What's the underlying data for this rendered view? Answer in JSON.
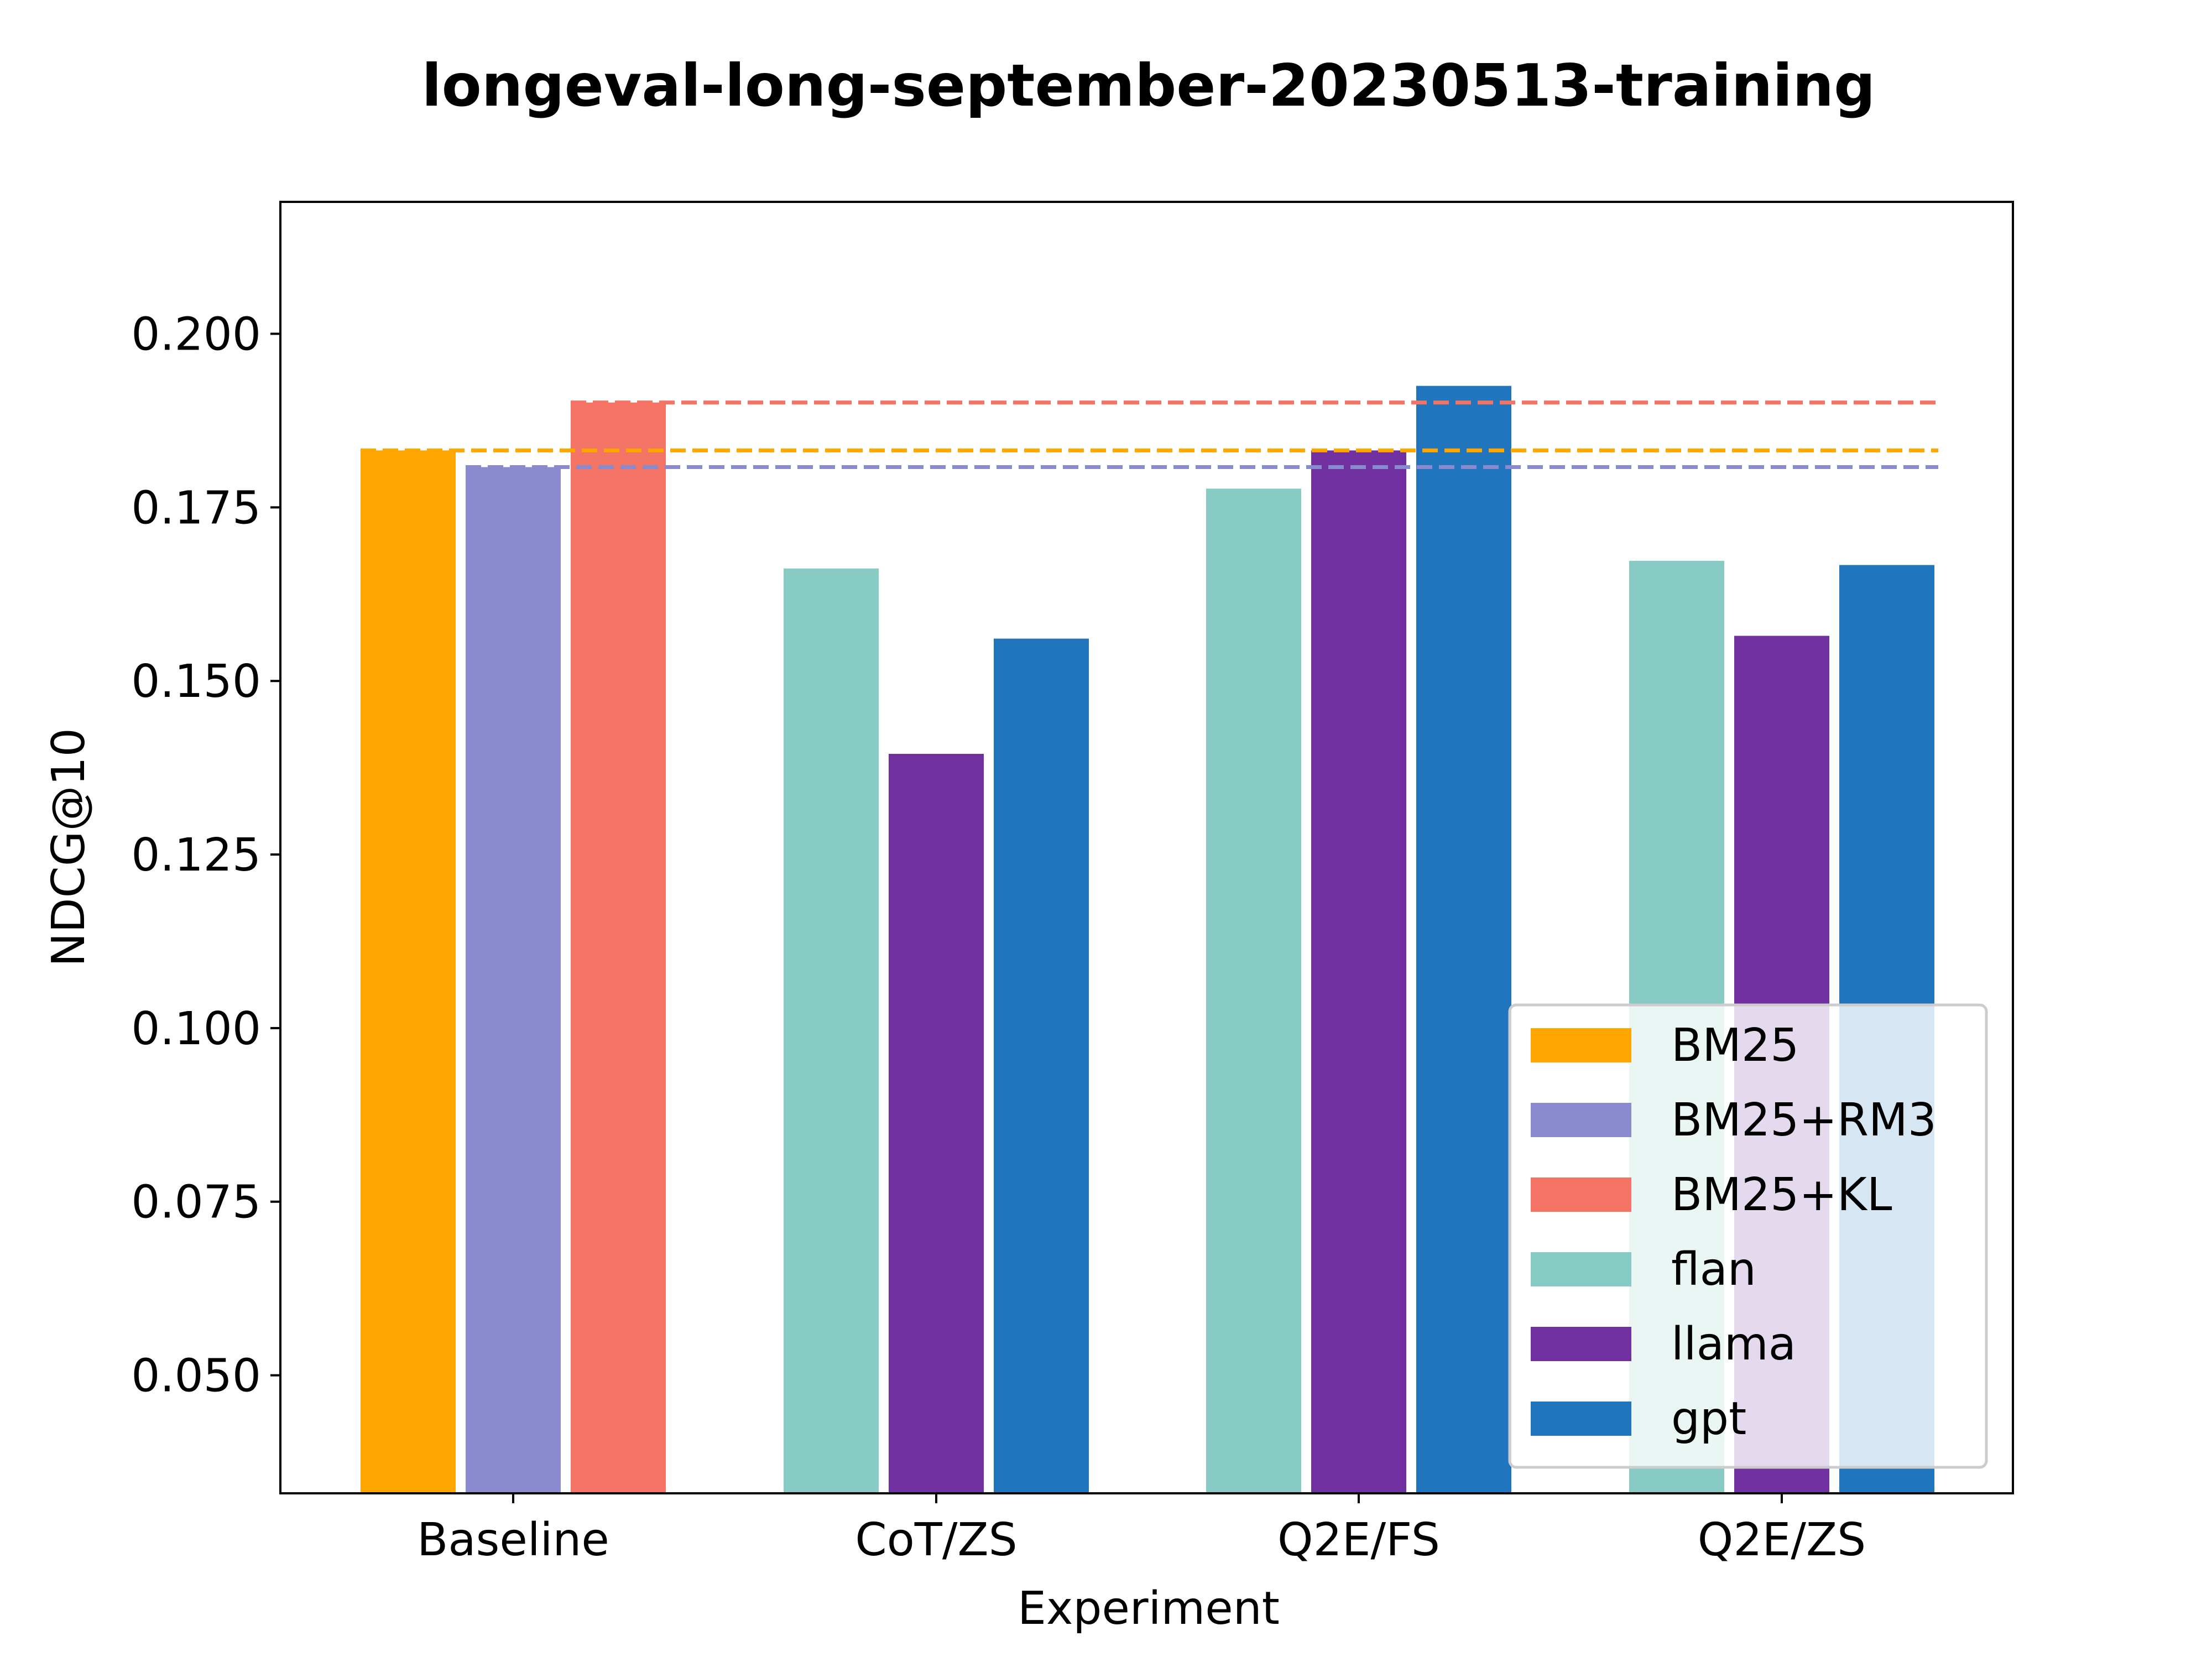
{
  "chart_data": {
    "type": "bar",
    "title": "longeval-long-september-20230513-training",
    "xlabel": "Experiment",
    "ylabel": "NDCG@10",
    "ylim": [
      0.033,
      0.219
    ],
    "yticks": [
      "0.050",
      "0.075",
      "0.100",
      "0.125",
      "0.150",
      "0.175",
      "0.200"
    ],
    "grid": false,
    "legend_position": "lower-right",
    "categories": [
      "Baseline",
      "CoT/ZS",
      "Q2E/FS",
      "Q2E/ZS"
    ],
    "series": [
      {
        "name": "BM25",
        "color": "#FFA500",
        "values": [
          0.1832,
          null,
          null,
          null
        ]
      },
      {
        "name": "BM25+RM3",
        "color": "#8A8BCF",
        "values": [
          0.1808,
          null,
          null,
          null
        ]
      },
      {
        "name": "BM25+KL",
        "color": "#F37365",
        "values": [
          0.1901,
          null,
          null,
          null
        ]
      },
      {
        "name": "flan",
        "color": "#87CBC4",
        "values": [
          null,
          0.1662,
          0.1777,
          0.1673
        ]
      },
      {
        "name": "llama",
        "color": "#70309F",
        "values": [
          null,
          0.1395,
          0.1832,
          0.1565
        ]
      },
      {
        "name": "gpt",
        "color": "#2075BC",
        "values": [
          null,
          0.1561,
          0.1925,
          0.1667
        ]
      }
    ],
    "reference_lines": [
      {
        "series": "BM25",
        "value": 0.1832
      },
      {
        "series": "BM25+RM3",
        "value": 0.1808
      },
      {
        "series": "BM25+KL",
        "value": 0.1901
      }
    ]
  }
}
